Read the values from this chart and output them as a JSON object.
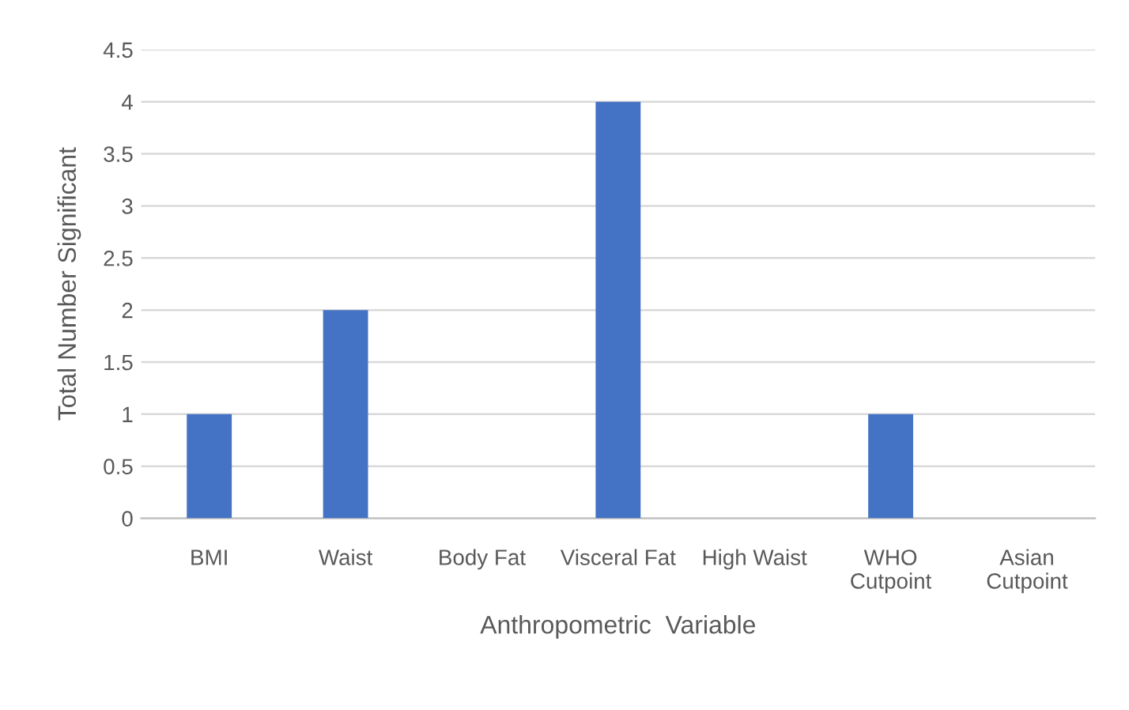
{
  "chart_data": {
    "type": "bar",
    "xlabel": "Anthropometric  Variable",
    "ylabel": "Total Number Significant",
    "categories": [
      "BMI",
      "Waist",
      "Body Fat",
      "Visceral Fat",
      "High Waist",
      "WHO\nCutpoint",
      "Asian\nCutpoint"
    ],
    "values": [
      1,
      2,
      0,
      4,
      0,
      1,
      0
    ],
    "color": "#4472c4",
    "ylim": [
      0,
      4.5
    ],
    "yticks": [
      0,
      0.5,
      1,
      1.5,
      2,
      2.5,
      3,
      3.5,
      4,
      4.5
    ],
    "grid": "y",
    "legend": false
  }
}
